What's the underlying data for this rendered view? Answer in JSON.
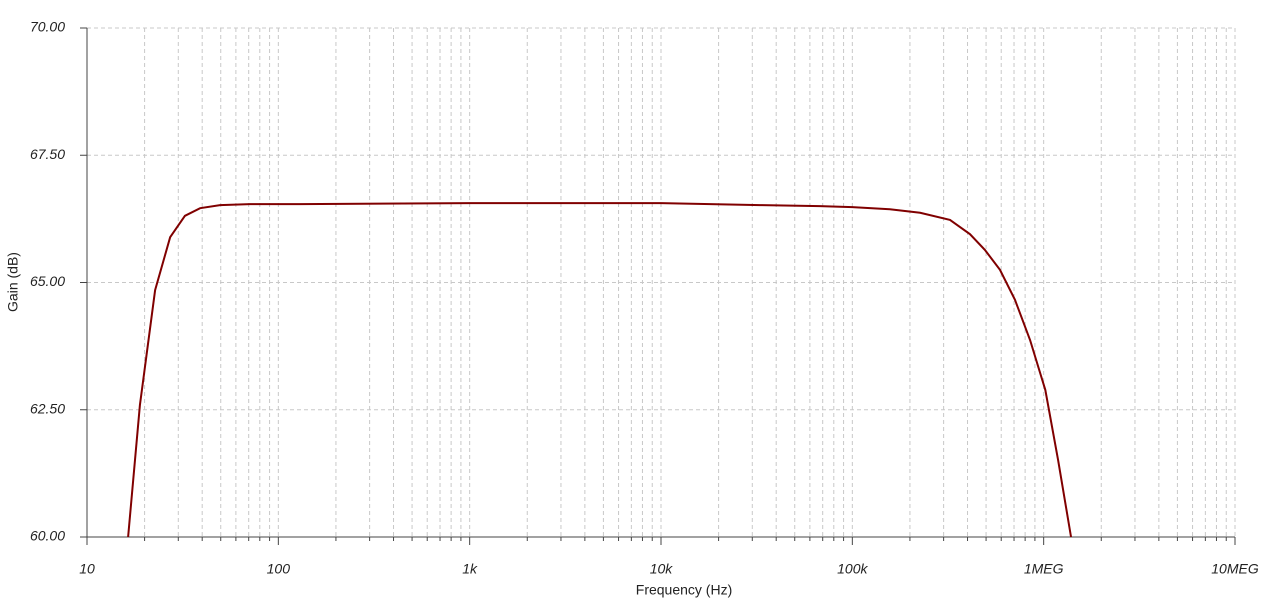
{
  "chart_data": {
    "type": "line",
    "x_label": "Frequency (Hz)",
    "y_label": "Gain (dB)",
    "x_scale": "log",
    "grid": true,
    "color": "#800000",
    "xlim": [
      10,
      10000000
    ],
    "xticks": [
      10,
      100,
      {
        "value": 1000,
        "label": "1k"
      },
      {
        "value": 10000,
        "label": "10k"
      },
      {
        "value": 100000,
        "label": "100k"
      },
      {
        "value": 1000000,
        "label": "1MEG"
      },
      {
        "value": 10000000,
        "label": "10MEG"
      }
    ],
    "ylim": [
      60,
      70
    ],
    "yticks": [
      {
        "value": 60,
        "label": "60.00"
      },
      {
        "value": 62.5,
        "label": "62.50"
      },
      {
        "value": 65,
        "label": "65.00"
      },
      {
        "value": 67.5,
        "label": "67.50"
      },
      {
        "value": 70,
        "label": "70.00"
      }
    ],
    "x": [
      16.4,
      18.9,
      22.7,
      27.2,
      32.5,
      39,
      49.6,
      71,
      130,
      1000,
      10000,
      32900,
      67600,
      100000,
      157000,
      226000,
      324000,
      412000,
      493000,
      591000,
      708000,
      849000,
      1020000,
      1190000,
      1390000
    ],
    "values": [
      60.0,
      62.59,
      64.85,
      65.89,
      66.31,
      66.46,
      66.52,
      66.54,
      66.54,
      66.56,
      66.56,
      66.52,
      66.5,
      66.48,
      66.44,
      66.37,
      66.23,
      65.95,
      65.64,
      65.25,
      64.66,
      63.87,
      62.89,
      61.51,
      60.0
    ]
  }
}
